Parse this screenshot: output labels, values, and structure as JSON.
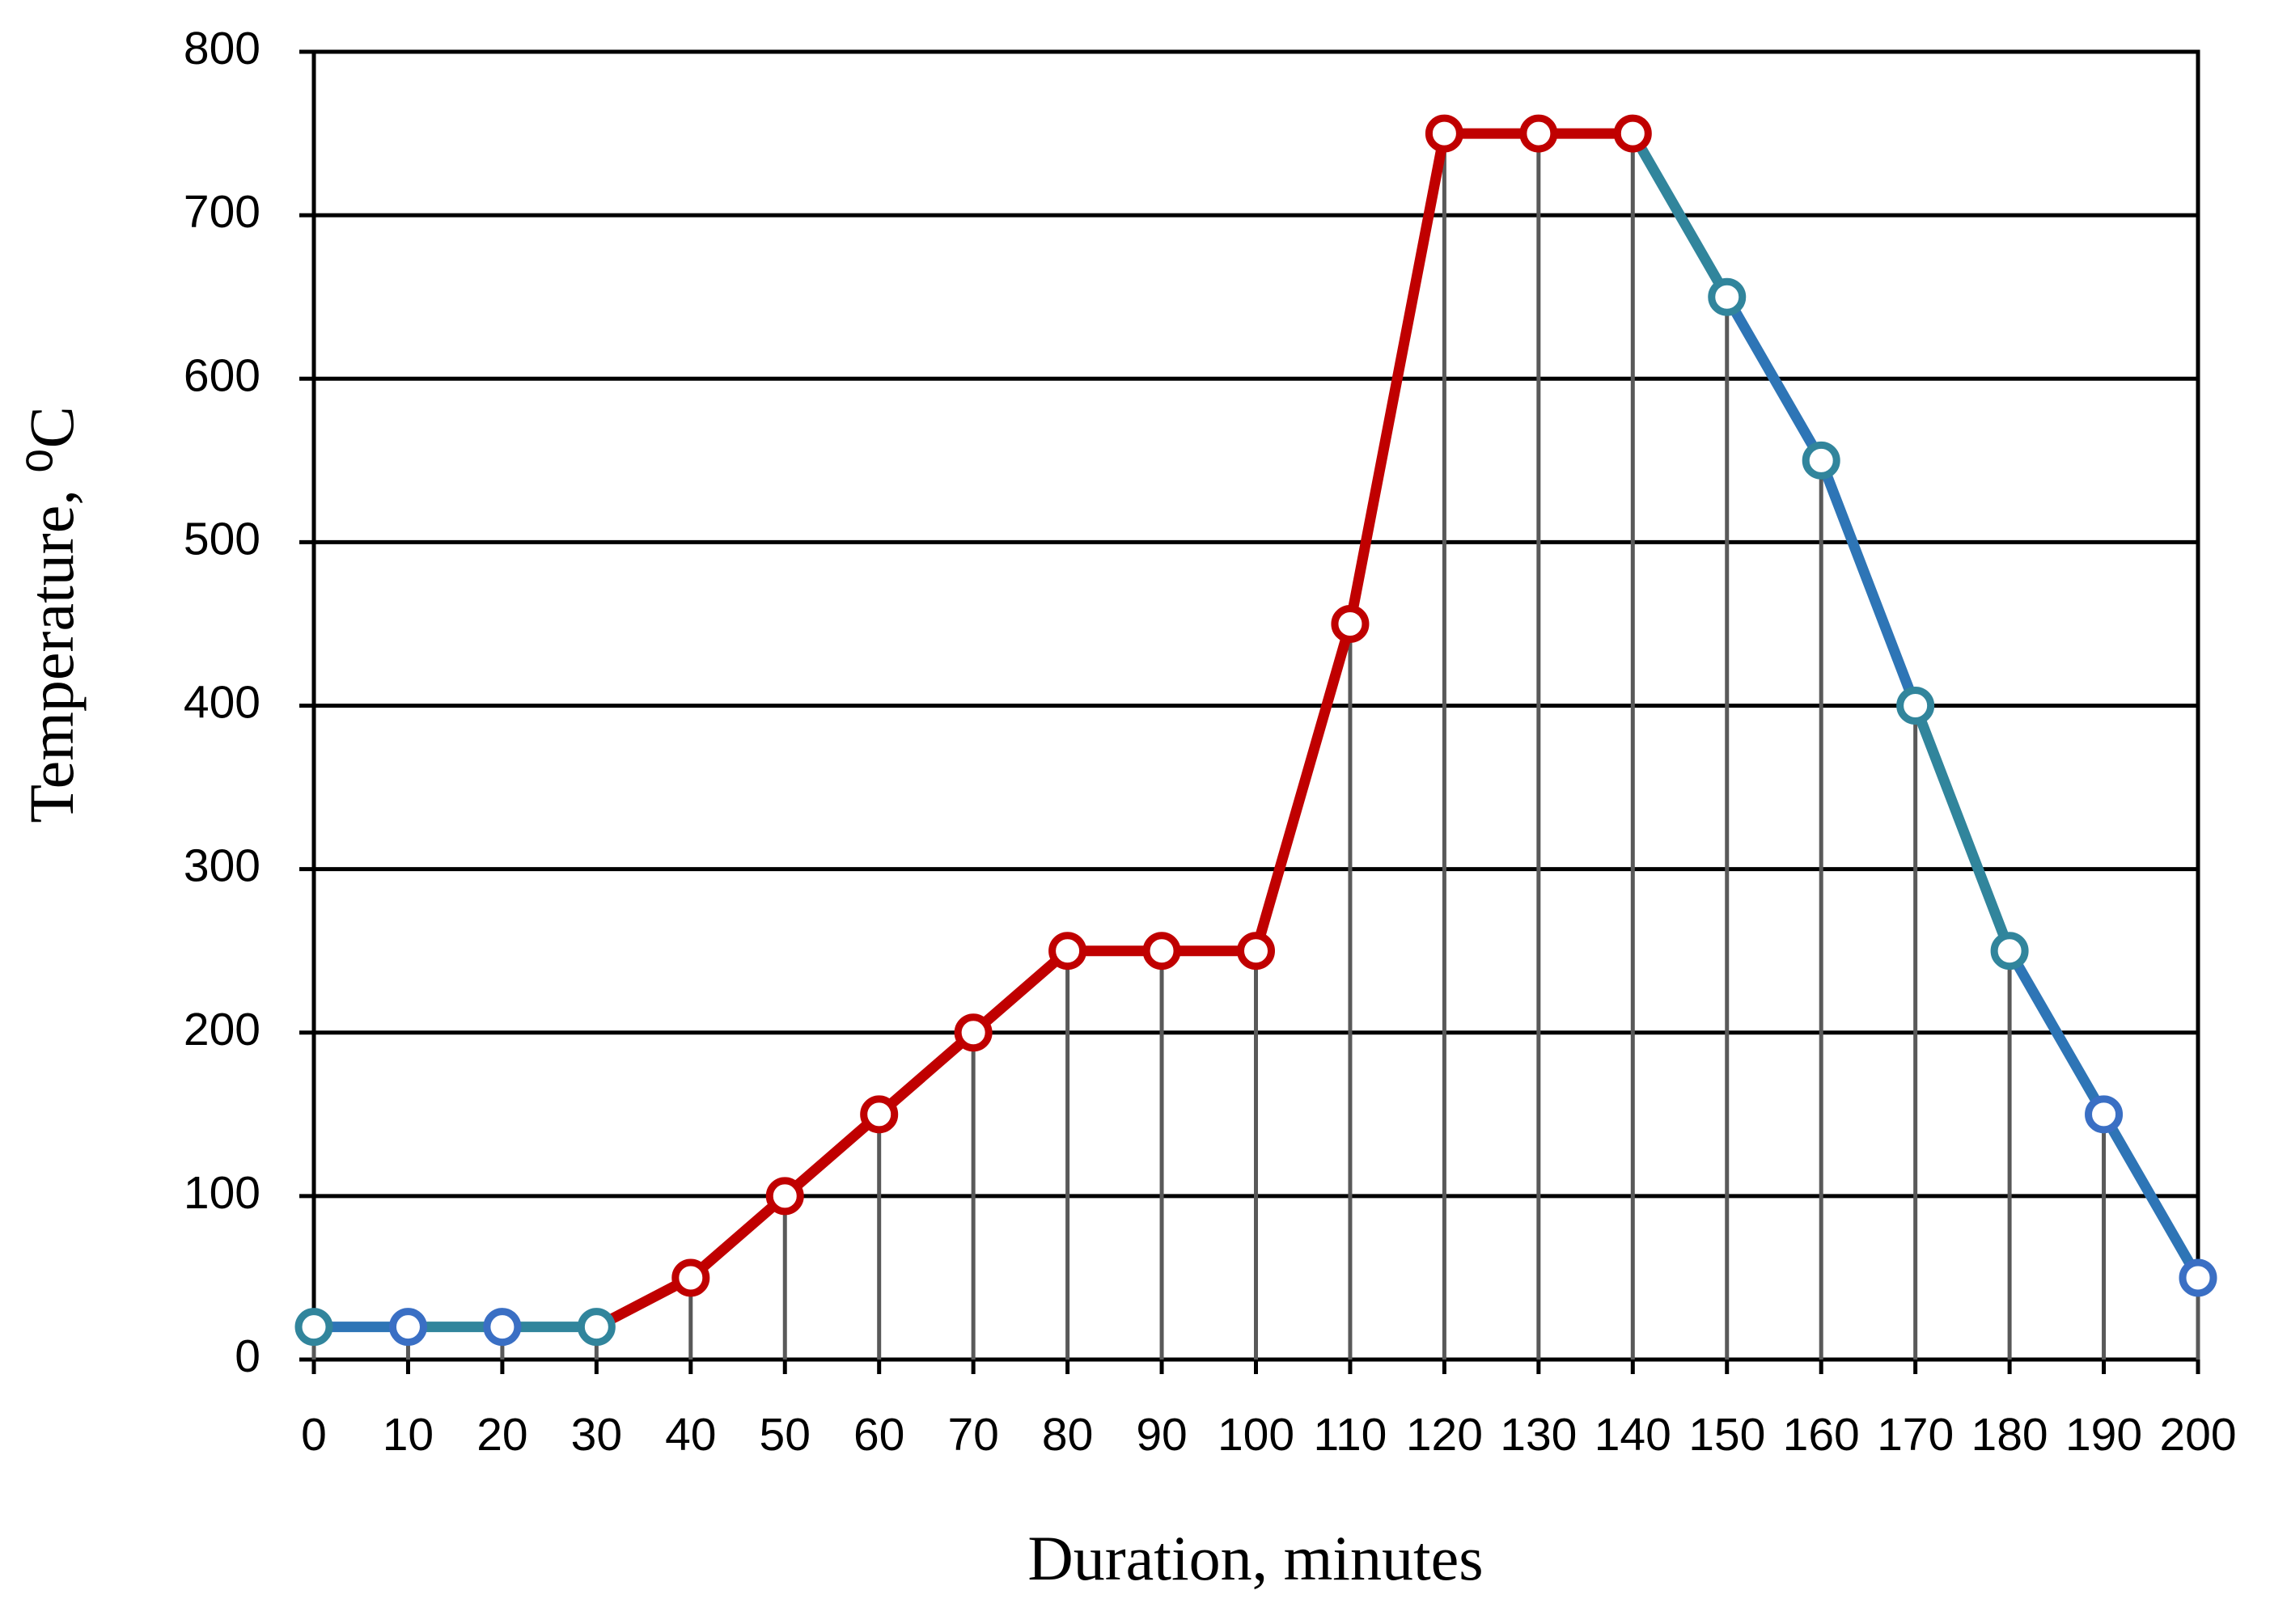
{
  "chart_data": {
    "type": "line",
    "xlabel": "Duration, minutes",
    "ylabel": "Temperature, ⁰C",
    "x": [
      0,
      10,
      20,
      30,
      40,
      50,
      60,
      70,
      80,
      90,
      100,
      110,
      120,
      130,
      140,
      150,
      160,
      170,
      180,
      190,
      200
    ],
    "series": [
      {
        "name": "Temperature",
        "color": "#c00000",
        "values": [
          20,
          20,
          20,
          20,
          50,
          100,
          150,
          200,
          250,
          250,
          250,
          450,
          750,
          750,
          750,
          650,
          550,
          400,
          250,
          150,
          50
        ],
        "point_colors": [
          "#31859c",
          "#3a6fc4",
          "#3a6fc4",
          "#31859c",
          "#c00000",
          "#c00000",
          "#c00000",
          "#c00000",
          "#c00000",
          "#c00000",
          "#c00000",
          "#c00000",
          "#c00000",
          "#c00000",
          "#c00000",
          "#31859c",
          "#31859c",
          "#31859c",
          "#31859c",
          "#3a6fc4",
          "#3a6fc4"
        ],
        "segment_colors": [
          "#2e75b6",
          "#31859c",
          "#31859c",
          "#c00000",
          "#c00000",
          "#c00000",
          "#c00000",
          "#c00000",
          "#c00000",
          "#c00000",
          "#c00000",
          "#c00000",
          "#c00000",
          "#c00000",
          "#31859c",
          "#2e75b6",
          "#2e75b6",
          "#31859c",
          "#2e75b6",
          "#2e75b6"
        ]
      }
    ],
    "xlim": [
      0,
      200
    ],
    "xticks": [
      0,
      10,
      20,
      30,
      40,
      50,
      60,
      70,
      80,
      90,
      100,
      110,
      120,
      130,
      140,
      150,
      160,
      170,
      180,
      190,
      200
    ],
    "ylim": [
      0,
      800
    ],
    "yticks": [
      0,
      100,
      200,
      300,
      400,
      500,
      600,
      700,
      800
    ],
    "grid": true,
    "drop_lines": true
  }
}
